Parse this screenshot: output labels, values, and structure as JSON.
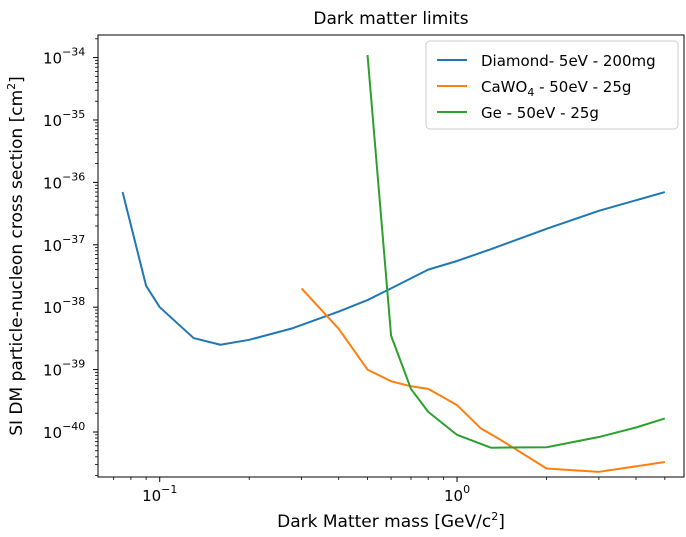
{
  "chart_data": {
    "type": "line",
    "title": "Dark matter limits",
    "xlabel": {
      "text": "Dark Matter mass [GeV/c",
      "sup": "2",
      "close": "]"
    },
    "ylabel": {
      "text": "SI DM particle-nucleon cross section [cm",
      "sup": "2",
      "close": "]"
    },
    "xscale": "log",
    "yscale": "log",
    "xlim": [
      0.062,
      5.8
    ],
    "ylim": [
      1.9e-41,
      2.3e-34
    ],
    "xticks": [
      {
        "value": 0.1,
        "base": "10",
        "exp": "−1"
      },
      {
        "value": 1,
        "base": "10",
        "exp": "0"
      }
    ],
    "yticks": [
      {
        "value": 1e-40,
        "base": "10",
        "exp": "−40"
      },
      {
        "value": 1e-39,
        "base": "10",
        "exp": "−39"
      },
      {
        "value": 1e-38,
        "base": "10",
        "exp": "−38"
      },
      {
        "value": 1e-37,
        "base": "10",
        "exp": "−37"
      },
      {
        "value": 1e-36,
        "base": "10",
        "exp": "−36"
      },
      {
        "value": 1e-35,
        "base": "10",
        "exp": "−35"
      },
      {
        "value": 1e-34,
        "base": "10",
        "exp": "−34"
      }
    ],
    "grid": false,
    "legend_position": "top-right",
    "series": [
      {
        "name": "Diamond- 5eV - 200mg",
        "color": "#1f77b4",
        "x": [
          0.075,
          0.09,
          0.1,
          0.13,
          0.16,
          0.2,
          0.28,
          0.4,
          0.5,
          0.6,
          0.8,
          1.0,
          1.3,
          2.0,
          3.0,
          5.0
        ],
        "y": [
          7e-37,
          2.2e-38,
          1e-38,
          3.2e-39,
          2.5e-39,
          3e-39,
          4.6e-39,
          8.5e-39,
          1.3e-38,
          2e-38,
          4e-38,
          5.5e-38,
          8.5e-38,
          1.8e-37,
          3.5e-37,
          7e-37
        ]
      },
      {
        "name": "CaWO",
        "name_sub": "4",
        "name_rest": " - 50eV - 25g",
        "color": "#ff7f0e",
        "x": [
          0.3,
          0.4,
          0.5,
          0.6,
          0.7,
          0.8,
          1.0,
          1.2,
          1.4,
          2.0,
          3.0,
          5.0
        ],
        "y": [
          2e-38,
          4.5e-39,
          1e-39,
          6.5e-40,
          5.4e-40,
          4.9e-40,
          2.7e-40,
          1.15e-40,
          7.5e-41,
          2.6e-41,
          2.3e-41,
          3.3e-41
        ]
      },
      {
        "name": "Ge - 50eV - 25g",
        "color": "#2ca02c",
        "x": [
          0.5,
          0.6,
          0.7,
          0.8,
          1.0,
          1.3,
          2.0,
          3.0,
          4.0,
          5.0
        ],
        "y": [
          1.1e-34,
          3.5e-39,
          4.9e-40,
          2.1e-40,
          9e-41,
          5.6e-41,
          5.7e-41,
          8.3e-41,
          1.18e-40,
          1.65e-40
        ]
      }
    ]
  }
}
